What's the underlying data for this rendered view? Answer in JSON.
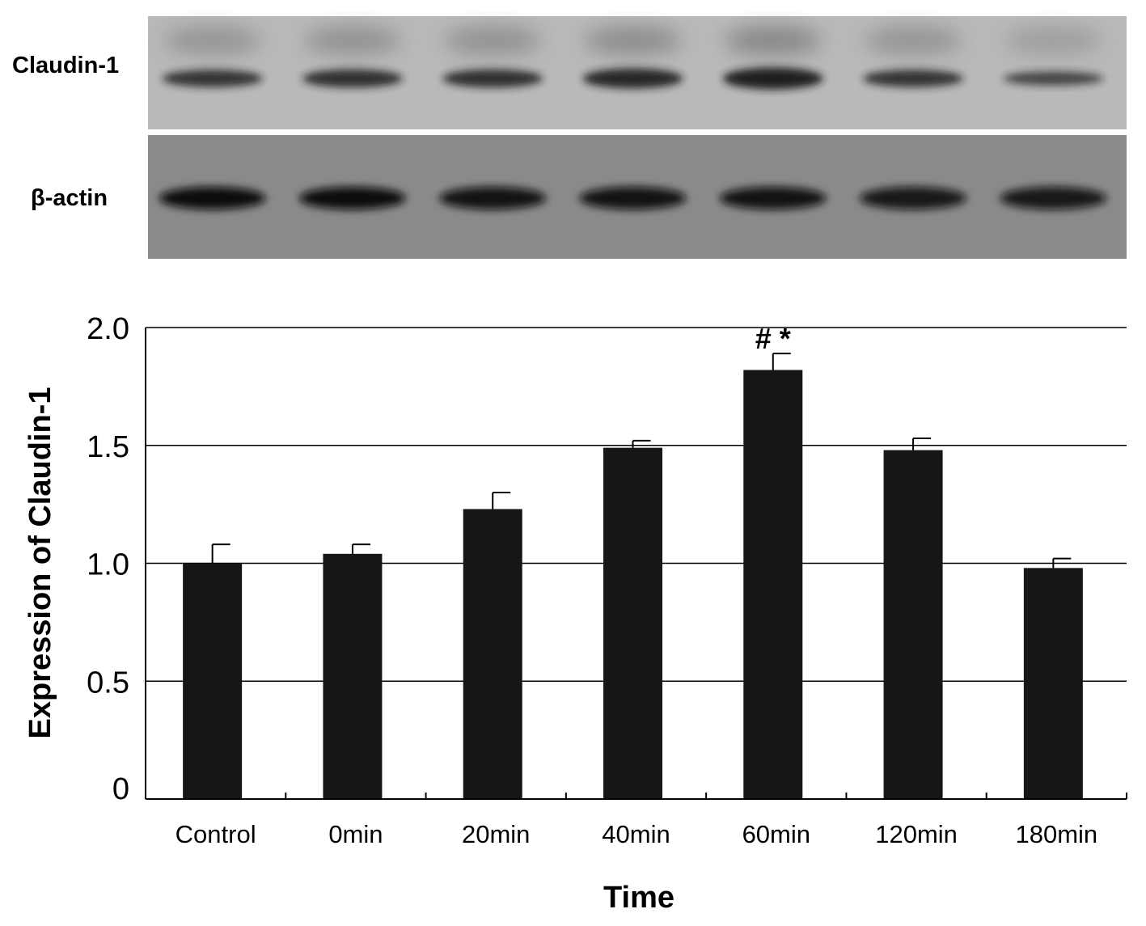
{
  "blot": {
    "rows": [
      {
        "label": "Claudin-1",
        "intensity": [
          0.7,
          0.75,
          0.75,
          0.85,
          0.95,
          0.7,
          0.5
        ]
      },
      {
        "label": "β-actin",
        "intensity": [
          1,
          1,
          0.95,
          0.95,
          0.95,
          0.9,
          0.9
        ]
      }
    ]
  },
  "chart_data": {
    "type": "bar",
    "title": "",
    "xlabel": "Time",
    "ylabel": "Expression of Claudin-1",
    "categories": [
      "Control",
      "0min",
      "20min",
      "40min",
      "60min",
      "120min",
      "180min"
    ],
    "values": [
      1.0,
      1.04,
      1.23,
      1.49,
      1.82,
      1.48,
      0.98
    ],
    "error": [
      0.08,
      0.04,
      0.07,
      0.03,
      0.07,
      0.05,
      0.04
    ],
    "ylim": [
      0,
      2.0
    ],
    "yticks": [
      0,
      0.5,
      1.0,
      1.5,
      2.0
    ],
    "ytick_labels": [
      "0",
      "0.5",
      "1.0",
      "1.5",
      "2.0"
    ],
    "grid": true,
    "bar_color": "#161616",
    "annotations": [
      {
        "category": "60min",
        "text": "#  *"
      }
    ]
  }
}
